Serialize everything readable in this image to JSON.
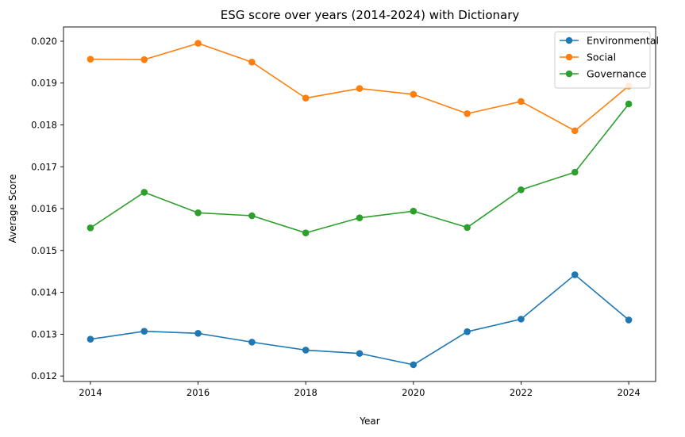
{
  "chart_data": {
    "type": "line",
    "title": "ESG score over years (2014-2024) with Dictionary",
    "xlabel": "Year",
    "ylabel": "Average Score",
    "x": [
      2014,
      2015,
      2016,
      2017,
      2018,
      2019,
      2020,
      2021,
      2022,
      2023,
      2024
    ],
    "xlim": [
      2013.5,
      2024.5
    ],
    "ylim": [
      0.01187,
      0.02034
    ],
    "x_ticks": [
      2014,
      2016,
      2018,
      2020,
      2022,
      2024
    ],
    "x_tick_labels": [
      "2014",
      "2016",
      "2018",
      "2020",
      "2022",
      "2024"
    ],
    "y_ticks": [
      0.012,
      0.013,
      0.014,
      0.015,
      0.016,
      0.017,
      0.018,
      0.019,
      0.02
    ],
    "y_tick_labels": [
      "0.012",
      "0.013",
      "0.014",
      "0.015",
      "0.016",
      "0.017",
      "0.018",
      "0.019",
      "0.020"
    ],
    "grid": false,
    "legend_position": "top-right",
    "series": [
      {
        "name": "Environmental",
        "color": "#1f77b4",
        "marker": "circle",
        "values": [
          0.01288,
          0.01307,
          0.01302,
          0.01281,
          0.01262,
          0.01254,
          0.01227,
          0.01306,
          0.01336,
          0.01442,
          0.01334
        ]
      },
      {
        "name": "Social",
        "color": "#ff7f0e",
        "marker": "circle",
        "values": [
          0.01957,
          0.01956,
          0.01995,
          0.0195,
          0.01864,
          0.01887,
          0.01873,
          0.01827,
          0.01856,
          0.01786,
          0.01893
        ]
      },
      {
        "name": "Governance",
        "color": "#2ca02c",
        "marker": "circle",
        "values": [
          0.01554,
          0.01639,
          0.0159,
          0.01583,
          0.01542,
          0.01578,
          0.01594,
          0.01555,
          0.01645,
          0.01687,
          0.0185
        ]
      }
    ]
  }
}
